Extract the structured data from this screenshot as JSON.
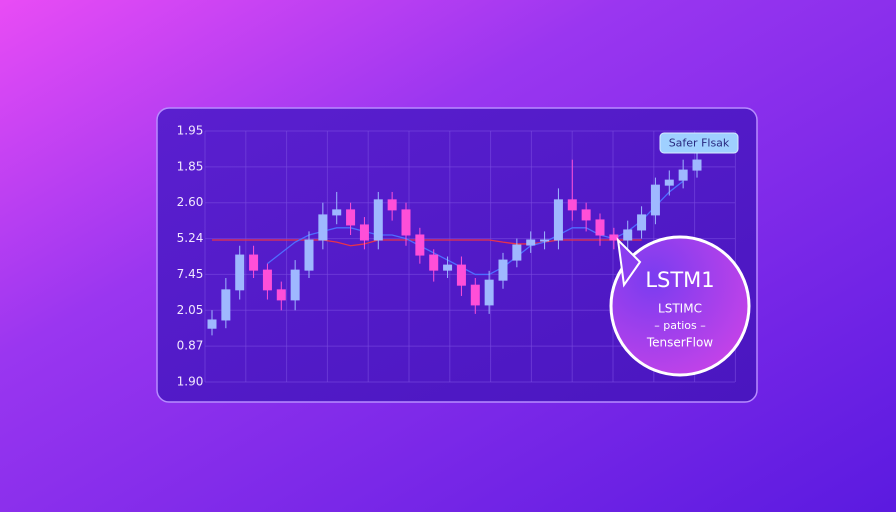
{
  "chart_data": {
    "type": "candlestick",
    "categories": [
      null,
      null,
      null,
      null,
      null,
      null,
      null,
      null,
      null,
      null,
      null,
      null,
      null,
      null,
      null,
      null,
      null,
      null,
      null,
      null,
      null,
      null,
      null,
      null,
      null,
      null,
      null,
      null,
      null,
      null,
      null,
      null,
      null,
      null,
      null,
      null
    ],
    "open": [
      1.5,
      1.73,
      2.57,
      3.54,
      3.12,
      2.57,
      2.29,
      3.12,
      3.96,
      4.66,
      4.8,
      4.38,
      3.96,
      5.08,
      4.8,
      4.1,
      3.54,
      3.12,
      3.26,
      2.7,
      2.15,
      2.84,
      3.4,
      3.82,
      3.96,
      3.96,
      5.08,
      4.8,
      4.52,
      4.1,
      3.96,
      4.24,
      4.66,
      5.49,
      5.63,
      5.91
    ],
    "high": [
      2.0,
      2.9,
      3.8,
      3.8,
      3.3,
      2.8,
      3.4,
      4.2,
      5.0,
      5.3,
      5.0,
      4.6,
      5.3,
      5.3,
      5.0,
      4.3,
      3.7,
      3.5,
      3.5,
      2.9,
      3.1,
      3.6,
      4.0,
      4.2,
      4.2,
      5.4,
      6.2,
      5.0,
      4.7,
      4.3,
      4.5,
      4.9,
      5.7,
      5.9,
      6.2,
      6.4
    ],
    "low": [
      1.3,
      1.5,
      2.3,
      2.9,
      2.3,
      2.0,
      2.0,
      2.9,
      3.7,
      4.4,
      4.1,
      3.7,
      3.7,
      4.5,
      3.8,
      3.3,
      2.8,
      2.9,
      2.4,
      1.9,
      1.9,
      2.6,
      3.2,
      3.6,
      3.7,
      3.7,
      4.5,
      4.2,
      3.8,
      3.7,
      3.7,
      4.0,
      4.4,
      5.2,
      5.4,
      5.7
    ],
    "close": [
      1.73,
      2.57,
      3.54,
      3.12,
      2.57,
      2.29,
      3.12,
      3.96,
      4.66,
      4.8,
      4.38,
      3.96,
      5.08,
      4.8,
      4.1,
      3.54,
      3.12,
      3.26,
      2.7,
      2.15,
      2.84,
      3.4,
      3.82,
      3.96,
      3.96,
      5.08,
      4.8,
      4.52,
      4.1,
      3.96,
      4.24,
      4.66,
      5.49,
      5.63,
      5.91,
      6.19
    ],
    "up_color": "#9fb8ff",
    "down_color": "#ff4fd8",
    "lines": [
      {
        "color": "#e8324a",
        "values": [
          3.96,
          3.96,
          3.96,
          3.96,
          3.96,
          3.96,
          3.96,
          3.96,
          3.96,
          3.9,
          3.8,
          3.85,
          3.96,
          3.96,
          3.96,
          3.96,
          3.96,
          3.96,
          3.96,
          3.96,
          3.96,
          3.9,
          3.85,
          3.85,
          3.9,
          3.96,
          3.96,
          3.96,
          3.96,
          3.96,
          3.96,
          3.96,
          null,
          null,
          null,
          null
        ]
      },
      {
        "color": "#4f6dff",
        "values": [
          null,
          null,
          null,
          null,
          3.3,
          3.6,
          3.9,
          4.1,
          4.2,
          4.3,
          4.3,
          4.2,
          4.1,
          4.1,
          4.0,
          3.8,
          3.6,
          3.4,
          3.2,
          3.0,
          3.0,
          3.2,
          3.5,
          3.8,
          3.9,
          4.1,
          4.3,
          4.3,
          4.1,
          4.0,
          4.2,
          4.5,
          4.9,
          5.3,
          5.6,
          null
        ]
      }
    ],
    "ylim": [
      0,
      7
    ],
    "yticks": [
      {
        "value": 7,
        "label": "1.95"
      },
      {
        "value": 6,
        "label": "1.85"
      },
      {
        "value": 5,
        "label": "2.60"
      },
      {
        "value": 4,
        "label": "5.24"
      },
      {
        "value": 3,
        "label": "7.45"
      },
      {
        "value": 2,
        "label": "2.05"
      },
      {
        "value": 1,
        "label": "0.87"
      },
      {
        "value": 0,
        "label": "1.90"
      }
    ],
    "grid": true,
    "badge": "Safer Flsak",
    "callout": {
      "title": "LSTM1",
      "lines": [
        "LSTIMC",
        "– patios –",
        "TenserFlow"
      ]
    }
  }
}
